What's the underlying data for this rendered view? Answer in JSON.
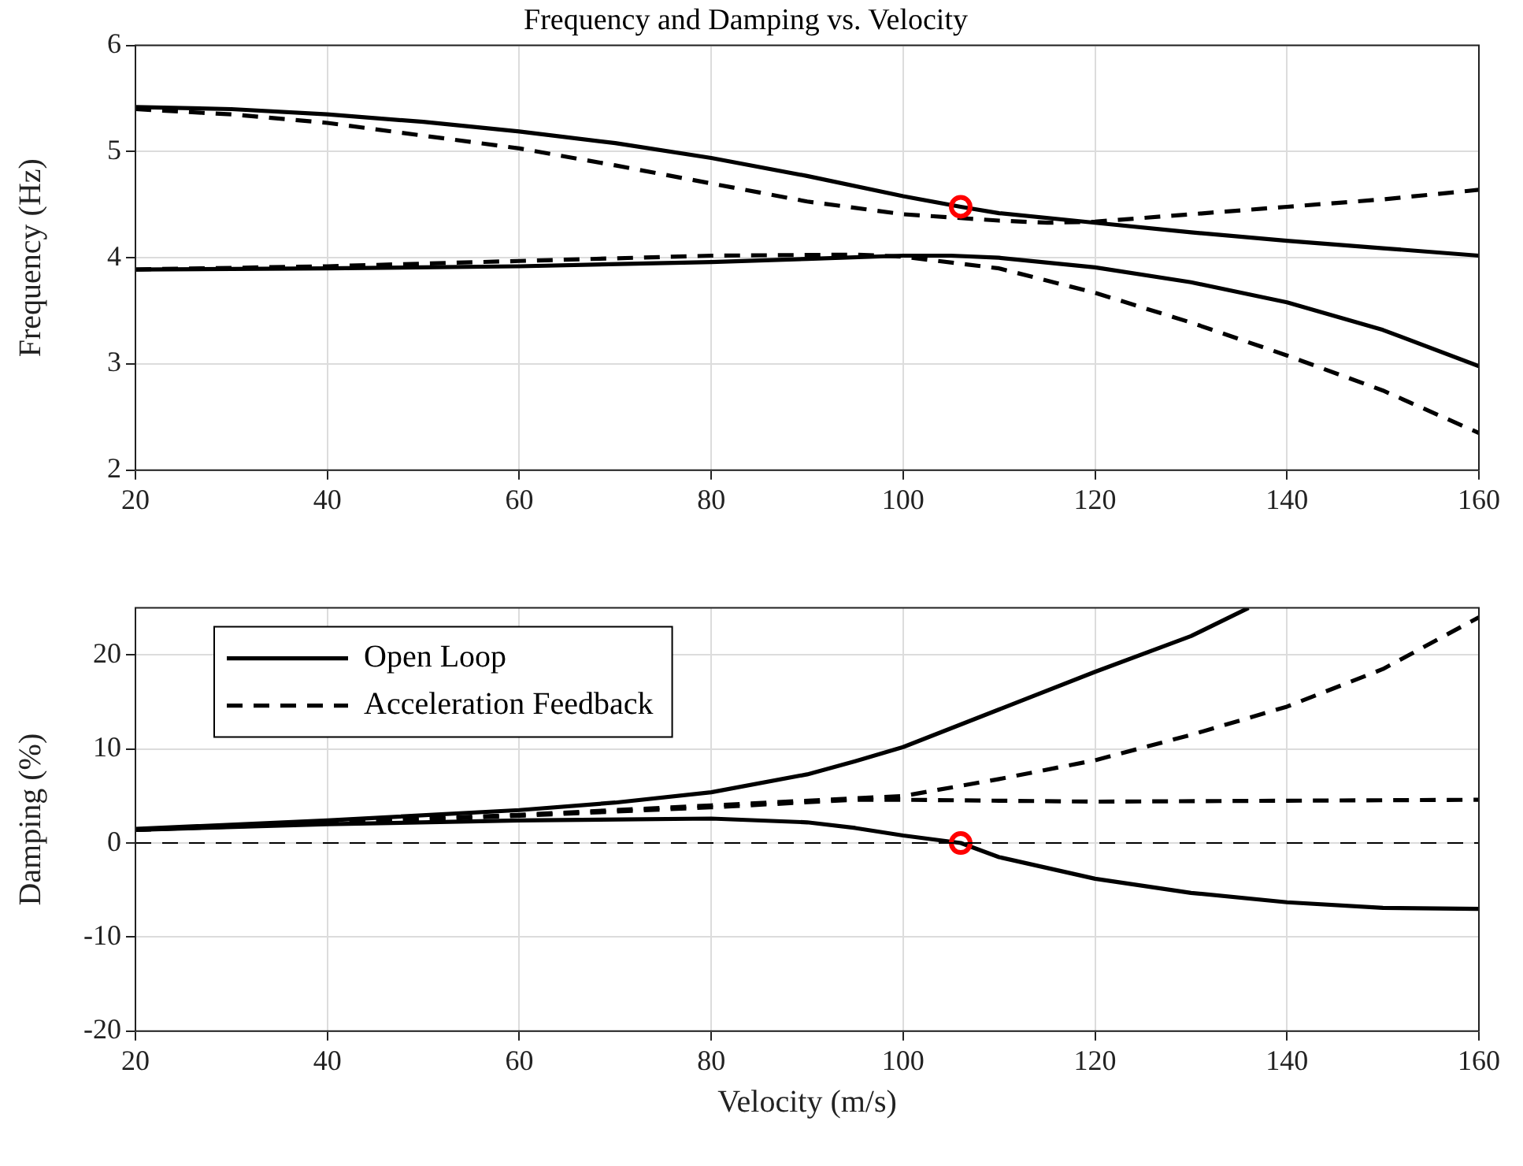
{
  "chart_data": [
    {
      "type": "line",
      "title": "Frequency and Damping vs. Velocity",
      "ylabel": "Frequency (Hz)",
      "xlim": [
        20,
        160
      ],
      "xticks": [
        20,
        40,
        60,
        80,
        100,
        120,
        140,
        160
      ],
      "ylim": [
        2,
        6
      ],
      "yticks": [
        2,
        3,
        4,
        5,
        6
      ],
      "grid": true,
      "legend": false,
      "series": [
        {
          "color": "#000000",
          "line_style": "solid",
          "marker": "none",
          "x": [
            20,
            30,
            40,
            50,
            60,
            70,
            80,
            90,
            100,
            106,
            110,
            120,
            130,
            140,
            150,
            160
          ],
          "values": [
            5.42,
            5.4,
            5.35,
            5.28,
            5.19,
            5.08,
            4.94,
            4.77,
            4.58,
            4.48,
            4.42,
            4.33,
            4.24,
            4.16,
            4.09,
            4.02
          ]
        },
        {
          "color": "#000000",
          "line_style": "solid",
          "marker": "none",
          "x": [
            20,
            40,
            60,
            80,
            90,
            100,
            105,
            110,
            120,
            130,
            140,
            150,
            160
          ],
          "values": [
            3.89,
            3.9,
            3.92,
            3.96,
            3.99,
            4.02,
            4.02,
            4.0,
            3.91,
            3.77,
            3.58,
            3.32,
            2.98
          ]
        },
        {
          "color": "#000000",
          "line_style": "dashed",
          "marker": "none",
          "x": [
            20,
            30,
            40,
            50,
            60,
            70,
            80,
            90,
            100,
            110,
            115,
            120,
            130,
            140,
            150,
            160
          ],
          "values": [
            5.4,
            5.35,
            5.27,
            5.15,
            5.03,
            4.87,
            4.7,
            4.53,
            4.41,
            4.35,
            4.33,
            4.34,
            4.41,
            4.48,
            4.55,
            4.64
          ]
        },
        {
          "color": "#000000",
          "line_style": "dashed",
          "marker": "none",
          "x": [
            20,
            40,
            60,
            80,
            95,
            100,
            110,
            120,
            130,
            140,
            150,
            160
          ],
          "values": [
            3.89,
            3.92,
            3.97,
            4.02,
            4.03,
            4.01,
            3.9,
            3.67,
            3.39,
            3.08,
            2.75,
            2.35
          ]
        },
        {
          "type": "scatter",
          "color": "#ff0000",
          "marker": "circle",
          "x": [
            106
          ],
          "values": [
            4.48
          ]
        }
      ]
    },
    {
      "type": "line",
      "xlabel": "Velocity (m/s)",
      "ylabel": "Damping (%)",
      "xlim": [
        20,
        160
      ],
      "xticks": [
        20,
        40,
        60,
        80,
        100,
        120,
        140,
        160
      ],
      "ylim": [
        -20,
        25
      ],
      "yticks": [
        -20,
        -10,
        0,
        10,
        20
      ],
      "grid": true,
      "legend": "top left",
      "ref_lines": [
        {
          "axis": "y",
          "value": 0,
          "color": "#000000",
          "line_style": "dashed"
        }
      ],
      "series": [
        {
          "name": "Open Loop",
          "color": "#000000",
          "line_style": "solid",
          "marker": "none",
          "x": [
            20,
            40,
            60,
            70,
            80,
            90,
            95,
            100,
            110,
            120,
            130,
            136
          ],
          "values": [
            1.5,
            2.4,
            3.5,
            4.3,
            5.4,
            7.3,
            8.7,
            10.2,
            14.2,
            18.2,
            22.0,
            25
          ]
        },
        {
          "color": "#000000",
          "line_style": "solid",
          "marker": "none",
          "x": [
            20,
            40,
            60,
            80,
            90,
            95,
            100,
            106,
            110,
            120,
            130,
            140,
            150,
            160
          ],
          "values": [
            1.4,
            2.0,
            2.4,
            2.6,
            2.2,
            1.6,
            0.8,
            0,
            -1.5,
            -3.8,
            -5.3,
            -6.3,
            -6.9,
            -7.0
          ]
        },
        {
          "name": "Acceleration Feedback",
          "color": "#000000",
          "line_style": "dashed",
          "marker": "none",
          "x": [
            20,
            40,
            60,
            80,
            100,
            110,
            120,
            130,
            140,
            150,
            160
          ],
          "values": [
            1.4,
            2.2,
            3.0,
            4.0,
            5.0,
            6.8,
            8.8,
            11.5,
            14.5,
            18.5,
            24.0
          ]
        },
        {
          "color": "#000000",
          "line_style": "dashed",
          "marker": "none",
          "x": [
            20,
            40,
            60,
            80,
            95,
            100,
            110,
            120,
            140,
            160
          ],
          "values": [
            1.4,
            2.1,
            2.9,
            3.8,
            4.6,
            4.6,
            4.5,
            4.4,
            4.5,
            4.6
          ]
        },
        {
          "type": "scatter",
          "color": "#ff0000",
          "marker": "circle",
          "x": [
            106
          ],
          "values": [
            0
          ]
        }
      ]
    }
  ]
}
